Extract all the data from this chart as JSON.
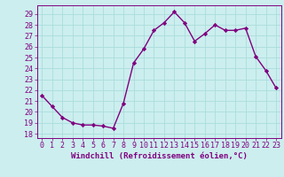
{
  "x": [
    0,
    1,
    2,
    3,
    4,
    5,
    6,
    7,
    8,
    9,
    10,
    11,
    12,
    13,
    14,
    15,
    16,
    17,
    18,
    19,
    20,
    21,
    22,
    23
  ],
  "y": [
    21.5,
    20.5,
    19.5,
    19.0,
    18.8,
    18.8,
    18.7,
    18.5,
    20.8,
    24.5,
    25.8,
    27.5,
    28.2,
    29.2,
    28.2,
    26.5,
    27.2,
    28.0,
    27.5,
    27.5,
    27.7,
    25.1,
    23.8,
    22.2
  ],
  "line_color": "#800080",
  "marker": "D",
  "markersize": 2.2,
  "linewidth": 1.0,
  "bg_color": "#cceeee",
  "grid_color": "#aadddd",
  "xlabel": "Windchill (Refroidissement éolien,°C)",
  "xlabel_fontsize": 6.5,
  "ylabel_ticks": [
    18,
    19,
    20,
    21,
    22,
    23,
    24,
    25,
    26,
    27,
    28,
    29
  ],
  "ylim": [
    17.6,
    29.8
  ],
  "xlim": [
    -0.5,
    23.5
  ],
  "tick_fontsize": 6.0,
  "tick_color": "#800080"
}
